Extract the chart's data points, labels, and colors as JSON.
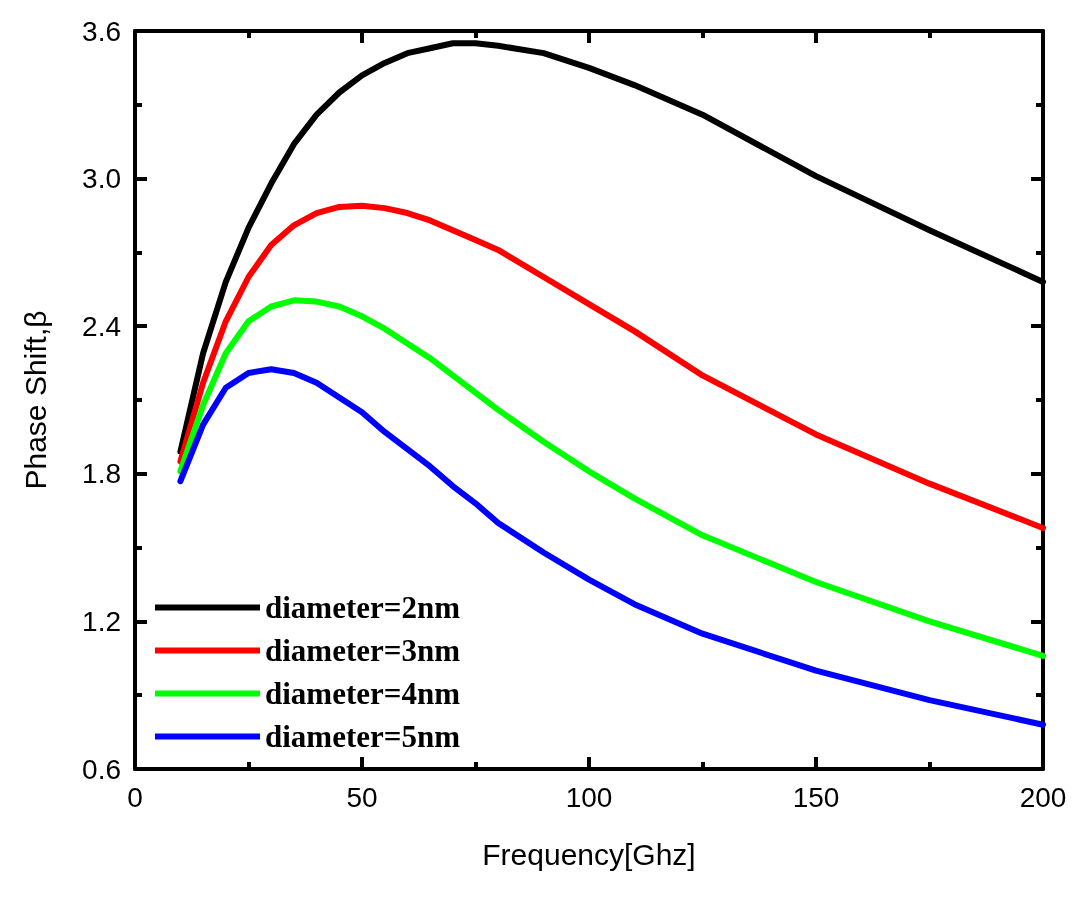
{
  "chart_data": {
    "type": "line",
    "xlabel": "Frequency[Ghz]",
    "ylabel": "Phase Shift,β",
    "x": [
      10,
      15,
      20,
      25,
      30,
      35,
      40,
      45,
      50,
      55,
      60,
      65,
      70,
      75,
      80,
      90,
      100,
      110,
      125,
      150,
      175,
      200
    ],
    "series": [
      {
        "name": "diameter=2nm",
        "color": "#000000",
        "values": [
          1.89,
          2.29,
          2.58,
          2.8,
          2.98,
          3.14,
          3.26,
          3.35,
          3.42,
          3.47,
          3.51,
          3.53,
          3.55,
          3.55,
          3.54,
          3.51,
          3.45,
          3.38,
          3.26,
          3.01,
          2.79,
          2.58
        ]
      },
      {
        "name": "diameter=3nm",
        "color": "#ff0000",
        "values": [
          1.85,
          2.17,
          2.42,
          2.6,
          2.73,
          2.81,
          2.86,
          2.885,
          2.89,
          2.88,
          2.86,
          2.83,
          2.79,
          2.75,
          2.71,
          2.6,
          2.49,
          2.38,
          2.2,
          1.96,
          1.76,
          1.58
        ]
      },
      {
        "name": "diameter=4nm",
        "color": "#00ff00",
        "values": [
          1.81,
          2.08,
          2.29,
          2.42,
          2.48,
          2.505,
          2.5,
          2.48,
          2.44,
          2.39,
          2.33,
          2.27,
          2.2,
          2.13,
          2.06,
          1.93,
          1.81,
          1.7,
          1.55,
          1.36,
          1.2,
          1.06
        ]
      },
      {
        "name": "diameter=5nm",
        "color": "#0000ff",
        "values": [
          1.77,
          2.0,
          2.15,
          2.21,
          2.225,
          2.21,
          2.17,
          2.11,
          2.05,
          1.97,
          1.9,
          1.83,
          1.75,
          1.68,
          1.6,
          1.48,
          1.37,
          1.27,
          1.15,
          1.0,
          0.88,
          0.78
        ]
      }
    ],
    "xlim": [
      0,
      200
    ],
    "xticks": [
      0,
      50,
      100,
      150,
      200
    ],
    "ylim": [
      0.6,
      3.6
    ],
    "yticks": [
      0.6,
      1.2,
      1.8,
      2.4,
      {
        "value": 3,
        "label": "3.0"
      },
      3.6
    ],
    "grid": false,
    "legend": "bottom left",
    "marker": "none",
    "line_style": "solid"
  }
}
